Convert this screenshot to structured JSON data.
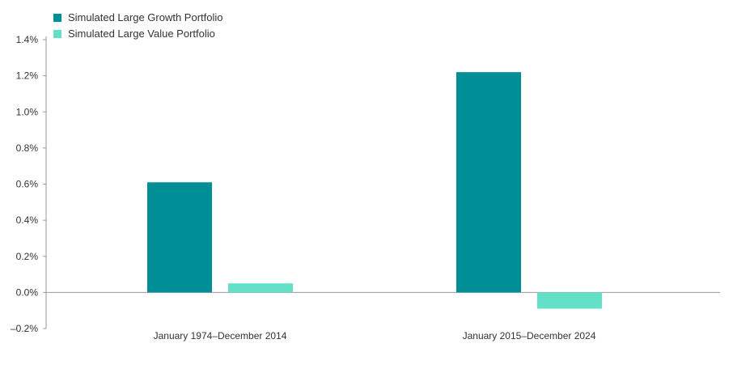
{
  "chart_data": {
    "type": "bar",
    "categories": [
      "January 1974–December 2014",
      "January 2015–December 2024"
    ],
    "series": [
      {
        "name": "Simulated Large Growth Portfolio",
        "values": [
          0.61,
          1.22
        ],
        "color": "#008F96"
      },
      {
        "name": "Simulated Large Value Portfolio",
        "values": [
          0.05,
          -0.09
        ],
        "color": "#64E0C8"
      }
    ],
    "ylim": [
      -0.2,
      1.4
    ],
    "yticks": [
      {
        "value": 1.4,
        "label": "1.4%"
      },
      {
        "value": 1.2,
        "label": "1.2%"
      },
      {
        "value": 1.0,
        "label": "1.0%"
      },
      {
        "value": 0.8,
        "label": "0.8%"
      },
      {
        "value": 0.6,
        "label": "0.6%"
      },
      {
        "value": 0.4,
        "label": "0.4%"
      },
      {
        "value": 0.2,
        "label": "0.2%"
      },
      {
        "value": 0.0,
        "label": "0.0%"
      },
      {
        "value": -0.2,
        "label": "–0.2%"
      }
    ],
    "grid": false,
    "legend": "top-left",
    "title": "",
    "xlabel": "",
    "ylabel": ""
  }
}
